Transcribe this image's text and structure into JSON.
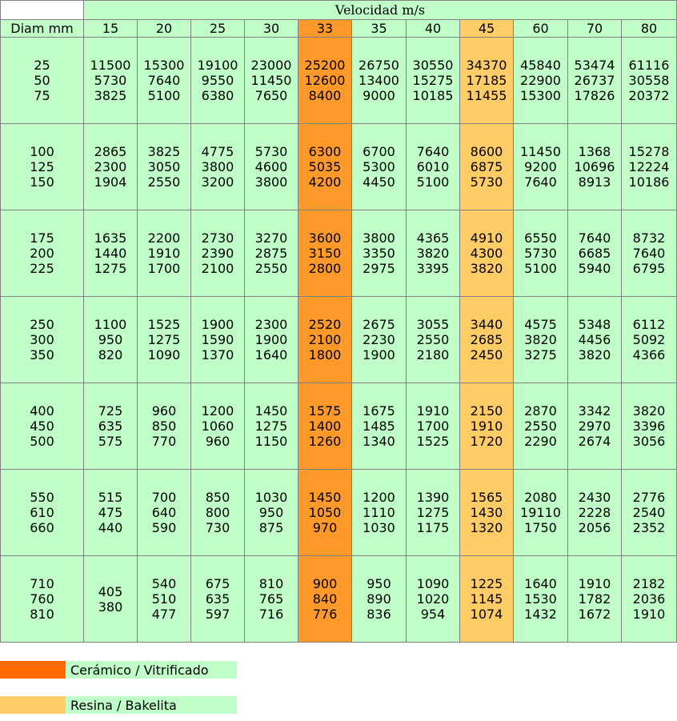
{
  "header": {
    "title": "Velocidad m/s",
    "diam_label": "Diam mm",
    "speeds": [
      "15",
      "20",
      "25",
      "30",
      "33",
      "35",
      "40",
      "45",
      "60",
      "70",
      "80"
    ],
    "ceramic_index": 4,
    "resin_index": 7
  },
  "rows": [
    {
      "diam": "25\n50\n75",
      "cells": [
        "11500\n5730\n3825",
        "15300\n7640\n5100",
        "19100\n9550\n6380",
        "23000\n11450\n7650",
        "25200\n12600\n8400",
        "26750\n13400\n9000",
        "30550\n15275\n10185",
        "34370\n17185\n11455",
        "45840\n22900\n15300",
        "53474\n26737\n17826",
        "61116\n30558\n20372"
      ]
    },
    {
      "diam": "100\n125\n150",
      "cells": [
        "2865\n2300\n1904",
        "3825\n3050\n2550",
        "4775\n3800\n3200",
        "5730\n4600\n3800",
        "6300\n5035\n4200",
        "6700\n5300\n4450",
        "7640\n6010\n5100",
        "8600\n6875\n5730",
        "11450\n9200\n7640",
        "1368\n10696\n8913",
        "15278\n12224\n10186"
      ]
    },
    {
      "diam": "175\n200\n225",
      "cells": [
        "1635\n1440\n1275",
        "2200\n1910\n1700",
        "2730\n2390\n2100",
        "3270\n2875\n2550",
        "3600\n3150\n2800",
        "3800\n3350\n2975",
        "4365\n3820\n3395",
        "4910\n4300\n3820",
        "6550\n5730\n5100",
        "7640\n6685\n5940",
        "8732\n7640\n6795"
      ]
    },
    {
      "diam": "250\n300\n350",
      "cells": [
        "1100\n950\n820",
        "1525\n1275\n1090",
        "1900\n1590\n1370",
        "2300\n1900\n1640",
        "2520\n2100\n1800",
        "2675\n2230\n1900",
        "3055\n2550\n2180",
        "3440\n2685\n2450",
        "4575\n3820\n3275",
        "5348\n4456\n3820",
        "6112\n5092\n4366"
      ]
    },
    {
      "diam": "400\n450\n500",
      "cells": [
        "725\n635\n575",
        "960\n850\n770",
        "1200\n1060\n960",
        "1450\n1275\n1150",
        "1575\n1400\n1260",
        "1675\n1485\n1340",
        "1910\n1700\n1525",
        "2150\n1910\n1720",
        "2870\n2550\n2290",
        "3342\n2970\n2674",
        "3820\n3396\n3056"
      ]
    },
    {
      "diam": "550\n610\n660",
      "cells": [
        "515\n475\n440",
        "700\n640\n590",
        "850\n800\n730",
        "1030\n950\n875",
        "1450\n1050\n970",
        "1200\n1110\n1030",
        "1390\n1275\n1175",
        "1565\n1430\n1320",
        "2080\n19110\n1750",
        "2430\n2228\n2056",
        "2776\n2540\n2352"
      ]
    },
    {
      "diam": "710\n760\n810",
      "cells": [
        "405\n380\n",
        "540\n510\n477",
        "675\n635\n597",
        "810\n765\n716",
        "900\n840\n776",
        "950\n890\n836",
        "1090\n1020\n954",
        "1225\n1145\n1074",
        "1640\n1530\n1432",
        "1910\n1782\n1672",
        "2182\n2036\n1910"
      ]
    }
  ],
  "legend": [
    {
      "label": "Cerámico / Vitrificado",
      "color": "#ff6a00"
    },
    {
      "label": "Resina / Bakelita",
      "color": "#ffcc66"
    }
  ]
}
